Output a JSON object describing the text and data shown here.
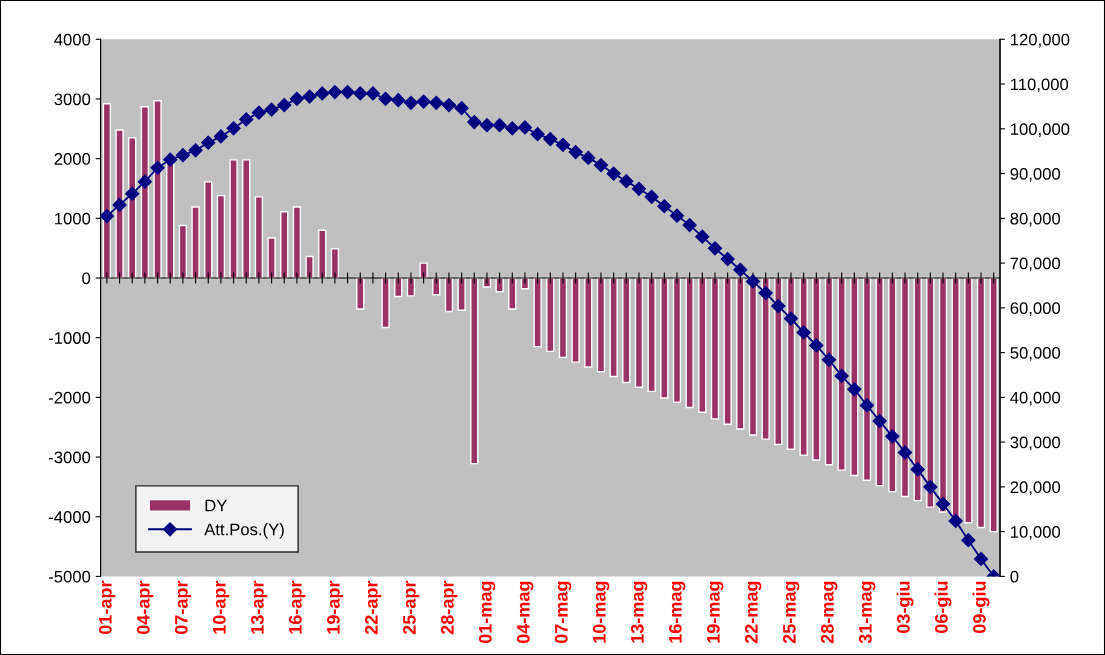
{
  "chart_data": {
    "type": "bar",
    "categories": [
      "01-apr",
      null,
      null,
      "04-apr",
      null,
      null,
      "07-apr",
      null,
      null,
      "10-apr",
      null,
      null,
      "13-apr",
      null,
      null,
      "16-apr",
      null,
      null,
      "19-apr",
      null,
      null,
      "22-apr",
      null,
      null,
      "25-apr",
      null,
      null,
      "28-apr",
      null,
      null,
      "01-mag",
      null,
      null,
      "04-mag",
      null,
      null,
      "07-mag",
      null,
      null,
      "10-mag",
      null,
      null,
      "13-mag",
      null,
      null,
      "16-mag",
      null,
      null,
      "19-mag",
      null,
      null,
      "22-mag",
      null,
      null,
      "25-mag",
      null,
      null,
      "28-mag",
      null,
      null,
      "31-mag",
      null,
      null,
      "03-giu",
      null,
      null,
      "06-giu",
      null,
      null,
      "09-giu",
      null
    ],
    "series": [
      {
        "name": "DY",
        "color": "#993366",
        "values": [
          2920,
          2480,
          2350,
          2870,
          2970,
          2000,
          880,
          1190,
          1610,
          1380,
          1980,
          1980,
          1360,
          670,
          1110,
          1190,
          360,
          800,
          490,
          null,
          -520,
          null,
          -830,
          -310,
          -300,
          250,
          -280,
          -560,
          -540,
          -3110,
          -150,
          -230,
          -520,
          -180,
          -1150,
          -1230,
          -1330,
          -1410,
          -1490,
          -1570,
          -1650,
          -1750,
          -1830,
          -1900,
          -2010,
          -2080,
          -2170,
          -2250,
          -2360,
          -2450,
          -2530,
          -2630,
          -2700,
          -2790,
          -2870,
          -2970,
          -3050,
          -3130,
          -3220,
          -3310,
          -3390,
          -3480,
          -3580,
          -3660,
          -3730,
          -3840,
          -3920,
          -4020,
          -4100,
          -4180,
          -4250
        ]
      },
      {
        "name": "Att.Pos.(Y)",
        "type": "line",
        "axis": "y2",
        "color": "#000080",
        "marker": "diamond",
        "line_style": "solid",
        "values": [
          80500,
          83000,
          85500,
          88200,
          91300,
          93100,
          94100,
          95200,
          96900,
          98300,
          100100,
          102100,
          103600,
          104300,
          105300,
          106700,
          107200,
          107900,
          108200,
          108200,
          107900,
          107900,
          106700,
          106400,
          105800,
          106100,
          105800,
          105300,
          104600,
          101500,
          100800,
          100800,
          100100,
          100300,
          98800,
          97700,
          96400,
          94800,
          93500,
          91900,
          90000,
          88300,
          86600,
          84800,
          82700,
          80600,
          78500,
          75900,
          73300,
          70900,
          68500,
          65900,
          63300,
          60400,
          57600,
          54500,
          51600,
          48400,
          44800,
          41800,
          38200,
          34700,
          31300,
          27700,
          23900,
          20000,
          16200,
          12400,
          8100,
          3900,
          0
        ]
      }
    ],
    "ylim": [
      -5000,
      4000
    ],
    "yticks": [
      -5000,
      -4000,
      -3000,
      -2000,
      -1000,
      0,
      1000,
      2000,
      3000,
      4000
    ],
    "y2lim": [
      0,
      120000
    ],
    "y2ticks": [
      {
        "value": 0,
        "label": "0"
      },
      {
        "value": 10000,
        "label": "10,000"
      },
      {
        "value": 20000,
        "label": "20,000"
      },
      {
        "value": 30000,
        "label": "30,000"
      },
      {
        "value": 40000,
        "label": "40,000"
      },
      {
        "value": 50000,
        "label": "50,000"
      },
      {
        "value": 60000,
        "label": "60,000"
      },
      {
        "value": 70000,
        "label": "70,000"
      },
      {
        "value": 80000,
        "label": "80,000"
      },
      {
        "value": 90000,
        "label": "90,000"
      },
      {
        "value": 100000,
        "label": "100,000"
      },
      {
        "value": 110000,
        "label": "110,000"
      },
      {
        "value": 120000,
        "label": "120,000"
      }
    ],
    "legend": "bottom left"
  }
}
